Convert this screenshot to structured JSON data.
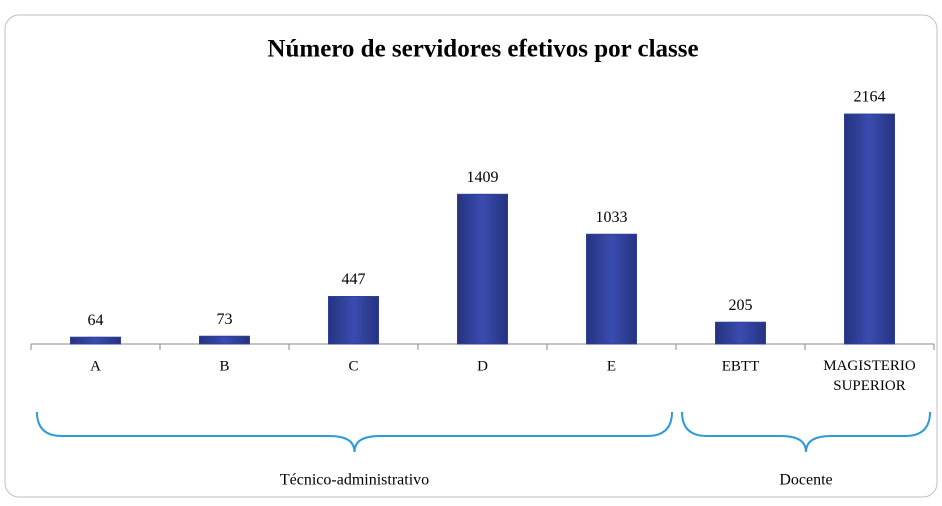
{
  "chart_data": {
    "type": "bar",
    "title": "Número de servidores efetivos por classe",
    "categories": [
      "A",
      "B",
      "C",
      "D",
      "E",
      "EBTT",
      "MAGISTERIO SUPERIOR"
    ],
    "values": [
      64,
      73,
      447,
      1409,
      1033,
      205,
      2164
    ],
    "color": "#2f3f9c",
    "ylim": [
      0,
      2400
    ],
    "groups": [
      {
        "name": "Técnico-administrativo",
        "members": [
          "A",
          "B",
          "C",
          "D",
          "E"
        ]
      },
      {
        "name": "Docente",
        "members": [
          "EBTT",
          "MAGISTERIO SUPERIOR"
        ]
      }
    ]
  }
}
